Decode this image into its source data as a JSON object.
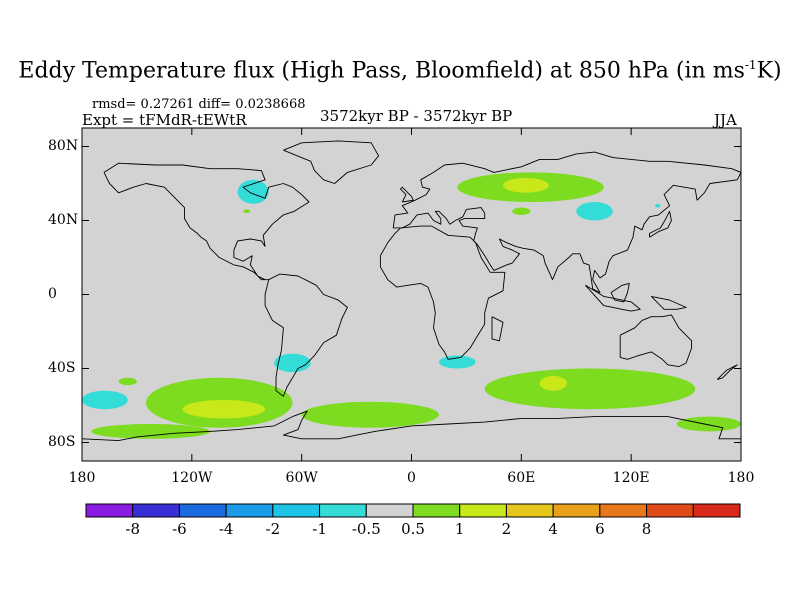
{
  "title": {
    "main": "Eddy Temperature flux (High Pass, Bloomfield) at 850 hPa (in ms",
    "sup": "-1",
    "end": "K)"
  },
  "stats_line": "rmsd= 0.27261 diff= 0.0238668",
  "expt_line": "Expt = tFMdR-tEWtR",
  "period_line": "3572kyr BP - 3572kyr BP",
  "season": "JJA",
  "chart_data": {
    "type": "heatmap",
    "title": "Eddy Temperature flux (High Pass, Bloomfield) at 850 hPa (in ms-1K)",
    "projection": "cylindrical equidistant world map with coastlines",
    "xlim": [
      -180,
      180
    ],
    "ylim": [
      -90,
      90
    ],
    "x_ticks": [
      {
        "value": -180,
        "label": "180"
      },
      {
        "value": -120,
        "label": "120W"
      },
      {
        "value": -60,
        "label": "60W"
      },
      {
        "value": 0,
        "label": "0"
      },
      {
        "value": 60,
        "label": "60E"
      },
      {
        "value": 120,
        "label": "120E"
      },
      {
        "value": 180,
        "label": "180"
      }
    ],
    "y_ticks": [
      {
        "value": 80,
        "label": "80N"
      },
      {
        "value": 40,
        "label": "40N"
      },
      {
        "value": 0,
        "label": "0"
      },
      {
        "value": -40,
        "label": "40S"
      },
      {
        "value": -80,
        "label": "80S"
      }
    ],
    "background_color": "#d3d3d3",
    "colorbar": {
      "colors": [
        "#8a1be0",
        "#3a2fd6",
        "#1a6ae0",
        "#1c9ce8",
        "#1ec4e6",
        "#34dcd8",
        "#d3d3d3",
        "#7ddc1f",
        "#c8e81a",
        "#e6c61a",
        "#e8a01a",
        "#e8761a",
        "#e04a18",
        "#d8281a"
      ],
      "labels": [
        "-8",
        "-6",
        "-4",
        "-2",
        "-1",
        "-0.5",
        "0.5",
        "1",
        "2",
        "4",
        "6",
        "8"
      ]
    },
    "anomaly_regions": [
      {
        "name": "hudson-bay",
        "level": "-0.5",
        "lon": [
          -95,
          -78
        ],
        "lat": [
          49,
          62
        ]
      },
      {
        "name": "great-lakes",
        "level": "0.5",
        "lon": [
          -92,
          -88
        ],
        "lat": [
          44,
          46
        ]
      },
      {
        "name": "n-eurasia",
        "level": "0.5",
        "lon": [
          25,
          105
        ],
        "lat": [
          50,
          66
        ]
      },
      {
        "name": "n-eurasia-core",
        "level": "1",
        "lon": [
          50,
          75
        ],
        "lat": [
          55,
          63
        ]
      },
      {
        "name": "ne-asia",
        "level": "-0.5",
        "lon": [
          90,
          110
        ],
        "lat": [
          40,
          50
        ]
      },
      {
        "name": "central-asia-small",
        "level": "0.5",
        "lon": [
          55,
          65
        ],
        "lat": [
          43,
          47
        ]
      },
      {
        "name": "ne-pacific-coast",
        "level": "-0.5",
        "lon": [
          133,
          136
        ],
        "lat": [
          47,
          49
        ]
      },
      {
        "name": "s-atlantic-west",
        "level": "-0.5",
        "lon": [
          -75,
          -55
        ],
        "lat": [
          -32,
          -42
        ]
      },
      {
        "name": "se-africa",
        "level": "-0.5",
        "lon": [
          15,
          35
        ],
        "lat": [
          -33,
          -40
        ]
      },
      {
        "name": "se-pacific-west",
        "level": "-0.5",
        "lon": [
          -180,
          -155
        ],
        "lat": [
          -52,
          -62
        ]
      },
      {
        "name": "s-pacific-small",
        "level": "0.5",
        "lon": [
          -160,
          -150
        ],
        "lat": [
          -45,
          -49
        ]
      },
      {
        "name": "southern-ocean-pacific",
        "level": "0.5",
        "lon": [
          -145,
          -65
        ],
        "lat": [
          -45,
          -72
        ]
      },
      {
        "name": "southern-ocean-pacific-core",
        "level": "1",
        "lon": [
          -125,
          -80
        ],
        "lat": [
          -57,
          -67
        ]
      },
      {
        "name": "drake-atlantic",
        "level": "0.5",
        "lon": [
          -60,
          15
        ],
        "lat": [
          -58,
          -72
        ]
      },
      {
        "name": "indian-ocean-south",
        "level": "0.5",
        "lon": [
          40,
          155
        ],
        "lat": [
          -40,
          -62
        ]
      },
      {
        "name": "indian-ocean-core",
        "level": "1",
        "lon": [
          70,
          85
        ],
        "lat": [
          -44,
          -52
        ]
      },
      {
        "name": "ross-sea",
        "level": "0.5",
        "lon": [
          -175,
          -110
        ],
        "lat": [
          -70,
          -78
        ]
      },
      {
        "name": "antarctic-coast-east",
        "level": "0.5",
        "lon": [
          145,
          180
        ],
        "lat": [
          -66,
          -74
        ]
      }
    ]
  }
}
